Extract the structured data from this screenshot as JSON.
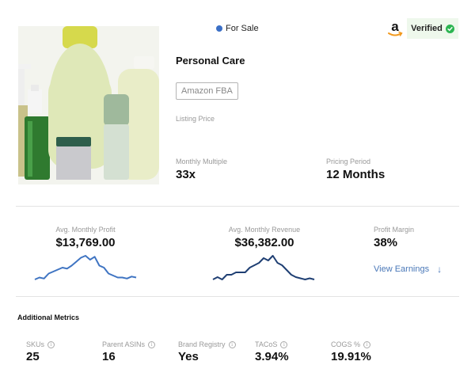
{
  "listing": {
    "status_label": "For Sale",
    "status_color": "#3b6fc6",
    "marketplace_icon": "amazon-logo-icon",
    "verified_label": "Verified",
    "verified_color": "#2db552",
    "category": "Personal Care",
    "model_tag": "Amazon FBA",
    "listing_price_label": "Listing Price",
    "listing_price_value": "",
    "monthly_multiple_label": "Monthly Multiple",
    "monthly_multiple_value": "33x",
    "pricing_period_label": "Pricing Period",
    "pricing_period_value": "12 Months",
    "image_alt": "Personal care product bottles"
  },
  "financials": {
    "profit": {
      "label": "Avg. Monthly Profit",
      "value": "$13,769.00",
      "color": "#3f74c2",
      "sparkline": [
        3,
        4,
        3.5,
        6,
        7,
        8,
        9,
        8.5,
        10,
        12,
        14,
        15,
        13,
        14.5,
        10,
        9,
        6,
        5,
        4,
        4,
        3.5,
        4.5,
        4
      ]
    },
    "revenue": {
      "label": "Avg. Monthly Revenue",
      "value": "$36,382.00",
      "color": "#1f3f73",
      "sparkline": [
        4,
        5,
        4,
        6,
        6,
        7,
        7,
        7,
        9,
        10,
        11,
        13,
        12,
        14,
        11,
        10,
        8,
        6,
        5,
        4.5,
        4,
        4.5,
        4
      ]
    },
    "margin": {
      "label": "Profit Margin",
      "value": "38%"
    },
    "view_earnings_label": "View Earnings",
    "view_earnings_icon": "arrow-down-icon"
  },
  "additional_metrics": {
    "title": "Additional Metrics",
    "items": [
      {
        "label": "SKUs",
        "value": "25"
      },
      {
        "label": "Parent ASINs",
        "value": "16"
      },
      {
        "label": "Brand Registry",
        "value": "Yes"
      },
      {
        "label": "TACoS",
        "value": "3.94%"
      },
      {
        "label": "COGS %",
        "value": "19.91%"
      }
    ],
    "info_icon": "info-icon"
  }
}
